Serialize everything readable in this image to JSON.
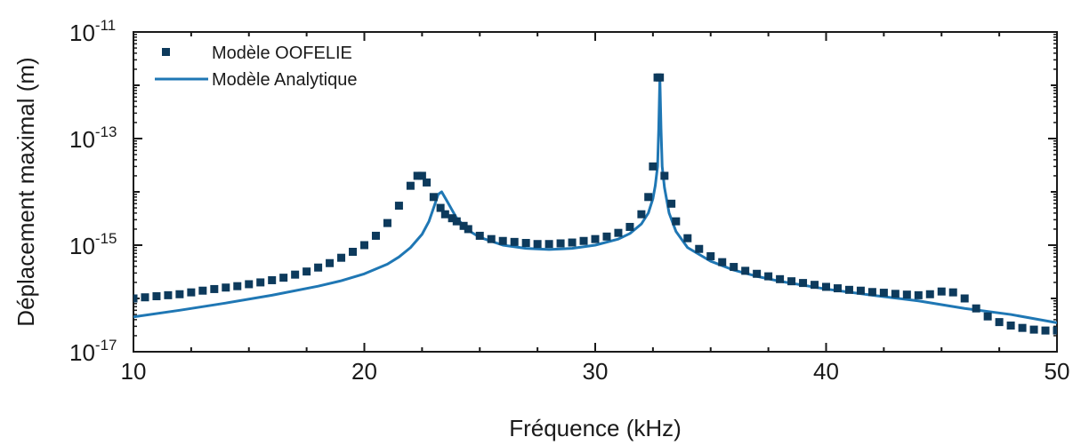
{
  "chart_data": {
    "type": "scatter",
    "xlabel": "Fréquence (kHz)",
    "ylabel": "Déplacement maximal (m)",
    "xscale": "linear",
    "yscale": "log",
    "xlim": [
      10,
      50
    ],
    "ylim": [
      1e-17,
      1e-11
    ],
    "x_ticks": [
      10,
      20,
      30,
      40,
      50
    ],
    "x_tick_labels": [
      "10",
      "20",
      "30",
      "40",
      "50"
    ],
    "y_ticks": [
      1e-17,
      1e-15,
      1e-13,
      1e-11
    ],
    "y_tick_labels": [
      {
        "base": "10",
        "exp": "-17"
      },
      {
        "base": "10",
        "exp": "-15"
      },
      {
        "base": "10",
        "exp": "-13"
      },
      {
        "base": "10",
        "exp": "-11"
      }
    ],
    "grid": false,
    "legend_position": "top-left",
    "series": [
      {
        "name": "Modèle OOFELIE",
        "style": "square-markers",
        "color": "#0d3a5c",
        "x": [
          10,
          10.5,
          11,
          11.5,
          12,
          12.5,
          13,
          13.5,
          14,
          14.5,
          15,
          15.5,
          16,
          16.5,
          17,
          17.5,
          18,
          18.5,
          19,
          19.5,
          20,
          20.5,
          21,
          21.5,
          22,
          22.3,
          22.5,
          22.7,
          23,
          23.3,
          23.5,
          23.8,
          24,
          24.3,
          24.5,
          25,
          25.5,
          26,
          26.5,
          27,
          27.5,
          28,
          28.5,
          29,
          29.5,
          30,
          30.5,
          31,
          31.5,
          32,
          32.3,
          32.5,
          32.7,
          32.8,
          33,
          33.3,
          33.5,
          34,
          34.5,
          35,
          35.5,
          36,
          36.5,
          37,
          37.5,
          38,
          38.5,
          39,
          39.5,
          40,
          40.5,
          41,
          41.5,
          42,
          42.5,
          43,
          43.5,
          44,
          44.5,
          45,
          45.5,
          46,
          46.5,
          47,
          47.5,
          48,
          48.5,
          49,
          49.5,
          50
        ],
        "y": [
          1e-16,
          1.05e-16,
          1.1e-16,
          1.15e-16,
          1.2e-16,
          1.3e-16,
          1.4e-16,
          1.5e-16,
          1.6e-16,
          1.7e-16,
          1.85e-16,
          2e-16,
          2.2e-16,
          2.45e-16,
          2.8e-16,
          3.2e-16,
          3.8e-16,
          4.6e-16,
          5.8e-16,
          7.5e-16,
          1e-15,
          1.5e-15,
          2.6e-15,
          5.5e-15,
          1.3e-14,
          2e-14,
          2e-14,
          1.5e-14,
          8e-15,
          5e-15,
          3.8e-15,
          3.2e-15,
          2.8e-15,
          2.3e-15,
          2e-15,
          1.5e-15,
          1.3e-15,
          1.2e-15,
          1.15e-15,
          1.1e-15,
          1.05e-15,
          1.05e-15,
          1.08e-15,
          1.12e-15,
          1.2e-15,
          1.3e-15,
          1.45e-15,
          1.7e-15,
          2.2e-15,
          3.8e-15,
          8e-15,
          3e-14,
          1.4e-12,
          1.4e-12,
          2e-14,
          6e-15,
          2.8e-15,
          1.35e-15,
          8.5e-16,
          6.2e-16,
          4.8e-16,
          3.9e-16,
          3.3e-16,
          2.9e-16,
          2.6e-16,
          2.3e-16,
          2.1e-16,
          1.95e-16,
          1.8e-16,
          1.65e-16,
          1.55e-16,
          1.45e-16,
          1.4e-16,
          1.32e-16,
          1.28e-16,
          1.22e-16,
          1.18e-16,
          1.15e-16,
          1.2e-16,
          1.35e-16,
          1.3e-16,
          1e-16,
          6.5e-17,
          4.6e-17,
          3.6e-17,
          3.1e-17,
          2.8e-17,
          2.6e-17,
          2.5e-17,
          2.5e-17
        ]
      },
      {
        "name": "Modèle Analytique",
        "style": "line",
        "color": "#1f77b4",
        "x": [
          10,
          12,
          14,
          16,
          18,
          19,
          20,
          21,
          21.5,
          22,
          22.5,
          22.8,
          23.0,
          23.2,
          23.35,
          23.6,
          24,
          24.5,
          25,
          26,
          27,
          28,
          29,
          30,
          31,
          31.5,
          32,
          32.3,
          32.5,
          32.6,
          32.7,
          32.75,
          32.8,
          32.85,
          32.9,
          33,
          33.2,
          33.5,
          34,
          35,
          36,
          37,
          38,
          40,
          42,
          44,
          46,
          48,
          50
        ],
        "y": [
          4.5e-17,
          6e-17,
          8.2e-17,
          1.15e-16,
          1.7e-16,
          2.15e-16,
          2.9e-16,
          4.4e-16,
          6e-16,
          9e-16,
          1.6e-15,
          2.8e-15,
          5e-15,
          9e-15,
          1e-14,
          6.5e-15,
          3.2e-15,
          1.9e-15,
          1.4e-15,
          1e-15,
          8.7e-16,
          8.3e-16,
          8.7e-16,
          1e-15,
          1.3e-15,
          1.65e-15,
          2.5e-15,
          4e-15,
          7.5e-15,
          1.3e-14,
          3e-14,
          1.5e-13,
          1.4e-12,
          1.5e-13,
          3e-14,
          1.2e-14,
          4e-15,
          1.8e-15,
          9e-16,
          5e-16,
          3.4e-16,
          2.6e-16,
          2.1e-16,
          1.5e-16,
          1.15e-16,
          9e-17,
          6.5e-17,
          5e-17,
          3.5e-17
        ]
      }
    ]
  }
}
